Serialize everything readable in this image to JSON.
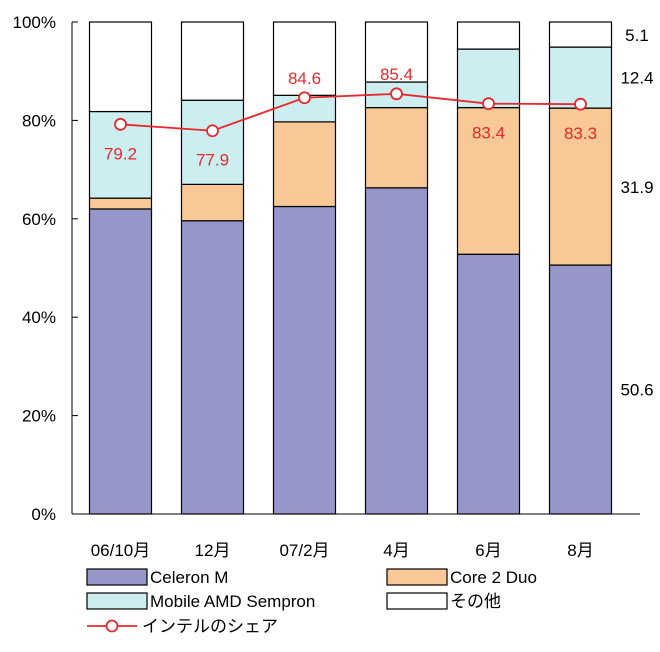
{
  "chart_data": {
    "type": "bar",
    "stacked": true,
    "categories": [
      "06/10月",
      "12月",
      "07/2月",
      "4月",
      "6月",
      "8月"
    ],
    "y_ticks": [
      "0%",
      "20%",
      "40%",
      "60%",
      "80%",
      "100%"
    ],
    "ylim": [
      0,
      100
    ],
    "grid": false,
    "series": [
      {
        "name": "Celeron M",
        "color": "#9696c8",
        "values": [
          62.0,
          59.6,
          62.5,
          66.3,
          52.8,
          50.6
        ]
      },
      {
        "name": "Core 2 Duo",
        "color": "#f8c896",
        "values": [
          2.2,
          7.4,
          17.2,
          16.3,
          29.8,
          31.9
        ]
      },
      {
        "name": "Mobile AMD Sempron",
        "color": "#cceef0",
        "values": [
          17.6,
          17.1,
          5.4,
          5.2,
          11.9,
          12.4
        ]
      },
      {
        "name": "その他",
        "color": "#ffffff",
        "values": [
          18.2,
          15.9,
          14.9,
          12.2,
          5.5,
          5.1
        ]
      }
    ],
    "line_series": {
      "name": "インテルのシェア",
      "color": "#e8282d",
      "values": [
        79.2,
        77.9,
        84.6,
        85.4,
        83.4,
        83.3
      ],
      "labels": [
        "79.2",
        "77.9",
        "84.6",
        "85.4",
        "83.4",
        "83.3"
      ]
    },
    "end_labels": [
      {
        "text": "50.6",
        "at": 25.3
      },
      {
        "text": "31.9",
        "at": 66.5
      },
      {
        "text": "12.4",
        "at": 88.7
      },
      {
        "text": "5.1",
        "at": 97.4
      }
    ],
    "legend": {
      "placement": "bottom",
      "items": [
        {
          "label": "Celeron M",
          "kind": "box",
          "color": "#9696c8"
        },
        {
          "label": "Core 2 Duo",
          "kind": "box",
          "color": "#f8c896"
        },
        {
          "label": "Mobile AMD Sempron",
          "kind": "box",
          "color": "#cceef0"
        },
        {
          "label": "その他",
          "kind": "box",
          "color": "#ffffff"
        },
        {
          "label": "インテルのシェア",
          "kind": "line",
          "color": "#e8282d"
        }
      ]
    }
  }
}
